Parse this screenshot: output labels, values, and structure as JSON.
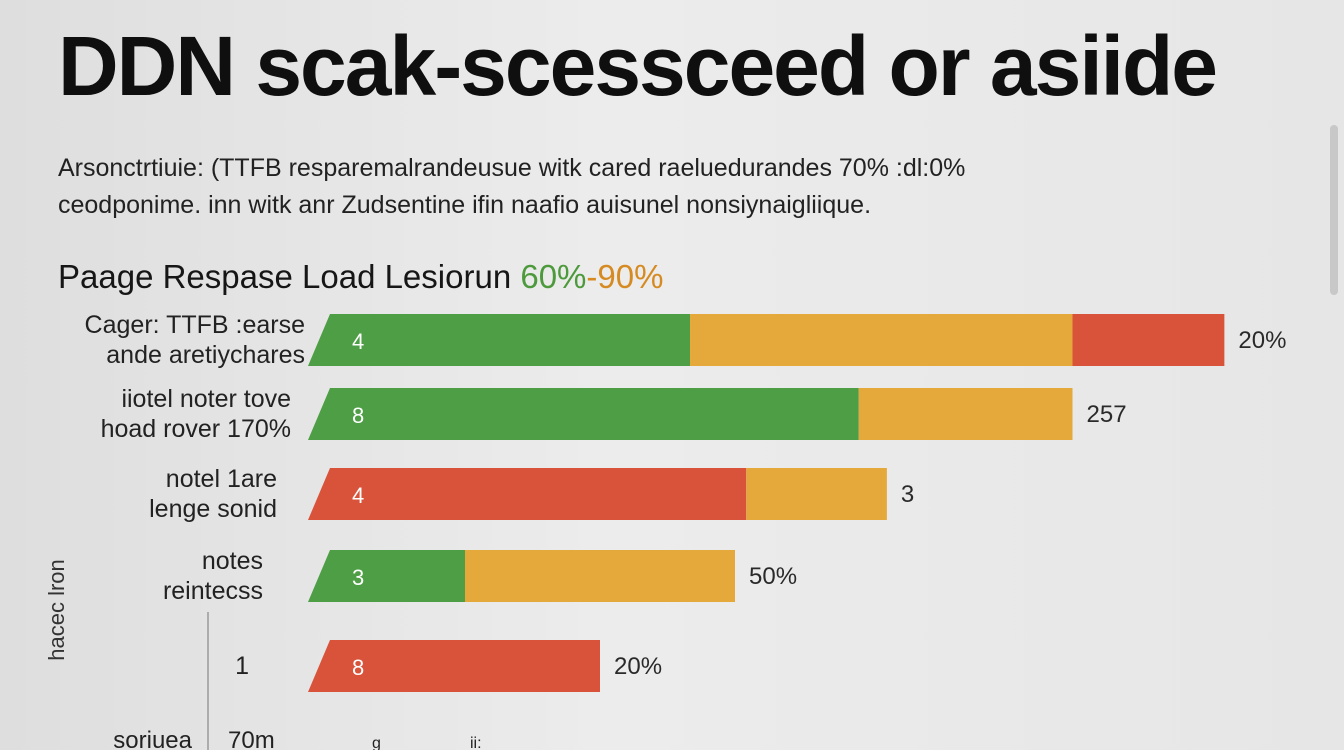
{
  "title": "DDN scak-scessceed or asiide",
  "description": [
    "Arsonctrtiuie: (TTFB resparemalrandeusue witk cared raeluedurandes 70% :dl:0%",
    "ceodponime. inn  witk anr Zudsentine ifin naafio auisunel nonsiynaigliique."
  ],
  "subtitle": {
    "main": "Paage Respase Load Lesiorun ",
    "accent_green": "60%",
    "accent_orange": "-90%"
  },
  "colors": {
    "green": "#4e9e45",
    "orange": "#e4a83b",
    "red": "#d9533a"
  },
  "chart_data": {
    "type": "bar",
    "orientation": "horizontal",
    "stacked": true,
    "ylabel": "hacec lron",
    "categories": [
      [
        "Cager: TTFB :earse",
        "ande aretiychares"
      ],
      [
        "iiotel noter tove",
        "hoad rover 170%"
      ],
      [
        "notel 1are",
        "lenge sonid"
      ],
      [
        "notes",
        "reintecss"
      ],
      [
        "1"
      ]
    ],
    "bars": [
      {
        "segments": [
          {
            "color": "green",
            "value": 32
          },
          {
            "color": "orange",
            "value": 34
          },
          {
            "color": "red",
            "value": 13.5
          }
        ],
        "inner_label": "4",
        "end_label": "20%"
      },
      {
        "segments": [
          {
            "color": "green",
            "value": 47
          },
          {
            "color": "orange",
            "value": 19
          }
        ],
        "inner_label": "8",
        "end_label": "257"
      },
      {
        "segments": [
          {
            "color": "red",
            "value": 37
          },
          {
            "color": "orange",
            "value": 12.5
          }
        ],
        "inner_label": "4",
        "end_label": "3"
      },
      {
        "segments": [
          {
            "color": "green",
            "value": 12
          },
          {
            "color": "orange",
            "value": 24
          }
        ],
        "inner_label": "3",
        "end_label": "50%"
      },
      {
        "segments": [
          {
            "color": "red",
            "value": 24
          }
        ],
        "inner_label": "8",
        "end_label": "20%"
      }
    ],
    "x_tick_labels": [
      "soriuea",
      "70m",
      "g",
      "ii:"
    ]
  }
}
